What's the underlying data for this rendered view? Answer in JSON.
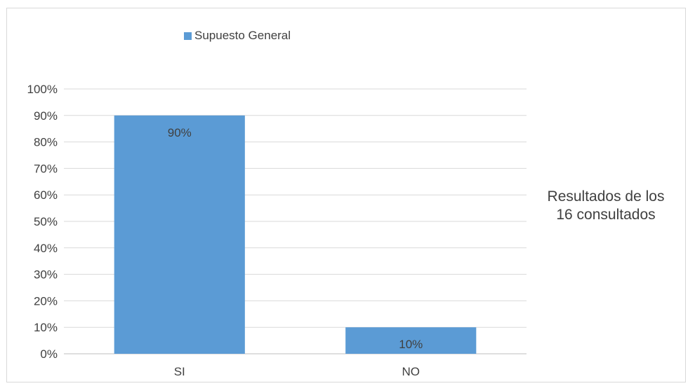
{
  "chart_data": {
    "type": "bar",
    "categories": [
      "SI",
      "NO"
    ],
    "series": [
      {
        "name": "Supuesto General",
        "values": [
          90,
          10
        ],
        "color": "#5b9bd5",
        "data_labels": [
          "90%",
          "10%"
        ]
      }
    ],
    "ylim": [
      0,
      100
    ],
    "y_ticks": [
      0,
      10,
      20,
      30,
      40,
      50,
      60,
      70,
      80,
      90,
      100
    ],
    "y_tick_labels": [
      "0%",
      "10%",
      "20%",
      "30%",
      "40%",
      "50%",
      "60%",
      "70%",
      "80%",
      "90%",
      "100%"
    ],
    "grid": true,
    "legend_position": "top",
    "annotation": {
      "line1": "Resultados de los",
      "line2": "16 consultados"
    },
    "colors": {
      "grid": "#d9d9d9",
      "axis": "#bfbfbf",
      "text": "#404040"
    }
  }
}
